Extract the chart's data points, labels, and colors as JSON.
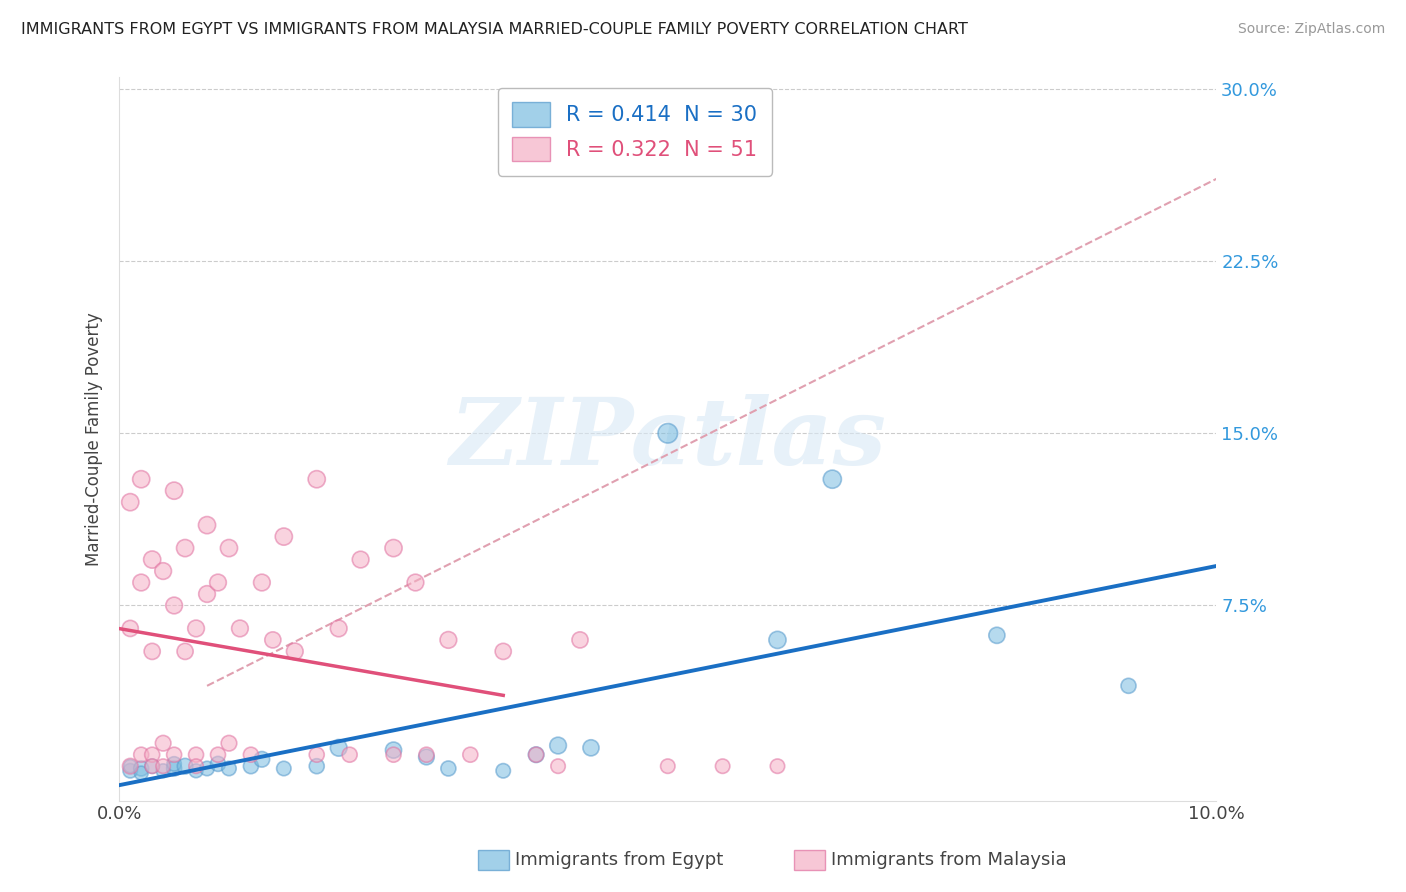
{
  "title": "IMMIGRANTS FROM EGYPT VS IMMIGRANTS FROM MALAYSIA MARRIED-COUPLE FAMILY POVERTY CORRELATION CHART",
  "source": "Source: ZipAtlas.com",
  "ylabel": "Married-Couple Family Poverty",
  "xlim": [
    0.0,
    0.1
  ],
  "ylim": [
    -0.01,
    0.305
  ],
  "ytick_vals": [
    0.0,
    0.075,
    0.15,
    0.225,
    0.3
  ],
  "ytick_labels": [
    "",
    "7.5%",
    "15.0%",
    "22.5%",
    "30.0%"
  ],
  "xtick_vals": [
    0.0,
    0.1
  ],
  "xtick_labels": [
    "0.0%",
    "10.0%"
  ],
  "egypt_R": 0.414,
  "egypt_N": 30,
  "malaysia_R": 0.322,
  "malaysia_N": 51,
  "egypt_color": "#7bbde0",
  "egypt_edge_color": "#5599cc",
  "malaysia_color": "#f5b0c5",
  "malaysia_edge_color": "#e070a0",
  "egypt_line_color": "#1a6fc4",
  "malaysia_line_color": "#e0507a",
  "dashed_line_color": "#e0a0b0",
  "egypt_scatter_x": [
    0.001,
    0.001,
    0.002,
    0.002,
    0.003,
    0.004,
    0.005,
    0.005,
    0.006,
    0.007,
    0.008,
    0.009,
    0.01,
    0.012,
    0.013,
    0.015,
    0.018,
    0.02,
    0.025,
    0.028,
    0.03,
    0.035,
    0.038,
    0.04,
    0.043,
    0.05,
    0.06,
    0.065,
    0.08,
    0.092
  ],
  "egypt_scatter_y": [
    0.003,
    0.005,
    0.004,
    0.002,
    0.005,
    0.003,
    0.004,
    0.006,
    0.005,
    0.003,
    0.004,
    0.006,
    0.004,
    0.005,
    0.008,
    0.004,
    0.005,
    0.013,
    0.012,
    0.009,
    0.004,
    0.003,
    0.01,
    0.014,
    0.013,
    0.15,
    0.06,
    0.13,
    0.062,
    0.04
  ],
  "egypt_scatter_sizes": [
    60,
    50,
    65,
    55,
    60,
    55,
    65,
    60,
    70,
    55,
    60,
    65,
    60,
    65,
    70,
    60,
    65,
    80,
    75,
    70,
    65,
    60,
    70,
    80,
    75,
    110,
    85,
    95,
    75,
    65
  ],
  "malaysia_scatter_x": [
    0.001,
    0.001,
    0.001,
    0.002,
    0.002,
    0.002,
    0.003,
    0.003,
    0.003,
    0.003,
    0.004,
    0.004,
    0.004,
    0.005,
    0.005,
    0.005,
    0.006,
    0.006,
    0.007,
    0.007,
    0.007,
    0.008,
    0.008,
    0.009,
    0.009,
    0.01,
    0.01,
    0.011,
    0.012,
    0.013,
    0.014,
    0.015,
    0.016,
    0.018,
    0.018,
    0.02,
    0.021,
    0.022,
    0.025,
    0.025,
    0.027,
    0.028,
    0.03,
    0.032,
    0.035,
    0.038,
    0.04,
    0.042,
    0.05,
    0.055,
    0.06
  ],
  "malaysia_scatter_y": [
    0.005,
    0.065,
    0.12,
    0.085,
    0.13,
    0.01,
    0.095,
    0.055,
    0.01,
    0.005,
    0.09,
    0.015,
    0.005,
    0.075,
    0.125,
    0.01,
    0.1,
    0.055,
    0.065,
    0.01,
    0.005,
    0.08,
    0.11,
    0.085,
    0.01,
    0.1,
    0.015,
    0.065,
    0.01,
    0.085,
    0.06,
    0.105,
    0.055,
    0.13,
    0.01,
    0.065,
    0.01,
    0.095,
    0.1,
    0.01,
    0.085,
    0.01,
    0.06,
    0.01,
    0.055,
    0.01,
    0.005,
    0.06,
    0.005,
    0.005,
    0.005
  ],
  "malaysia_scatter_sizes": [
    70,
    75,
    85,
    80,
    85,
    65,
    85,
    75,
    65,
    60,
    80,
    70,
    60,
    80,
    85,
    65,
    85,
    75,
    80,
    65,
    60,
    80,
    85,
    80,
    65,
    85,
    70,
    80,
    65,
    80,
    75,
    85,
    80,
    85,
    65,
    80,
    65,
    80,
    85,
    65,
    80,
    65,
    80,
    65,
    75,
    65,
    60,
    75,
    60,
    60,
    60
  ],
  "watermark_text": "ZIPatlas",
  "background_color": "#ffffff",
  "grid_color": "#cccccc"
}
